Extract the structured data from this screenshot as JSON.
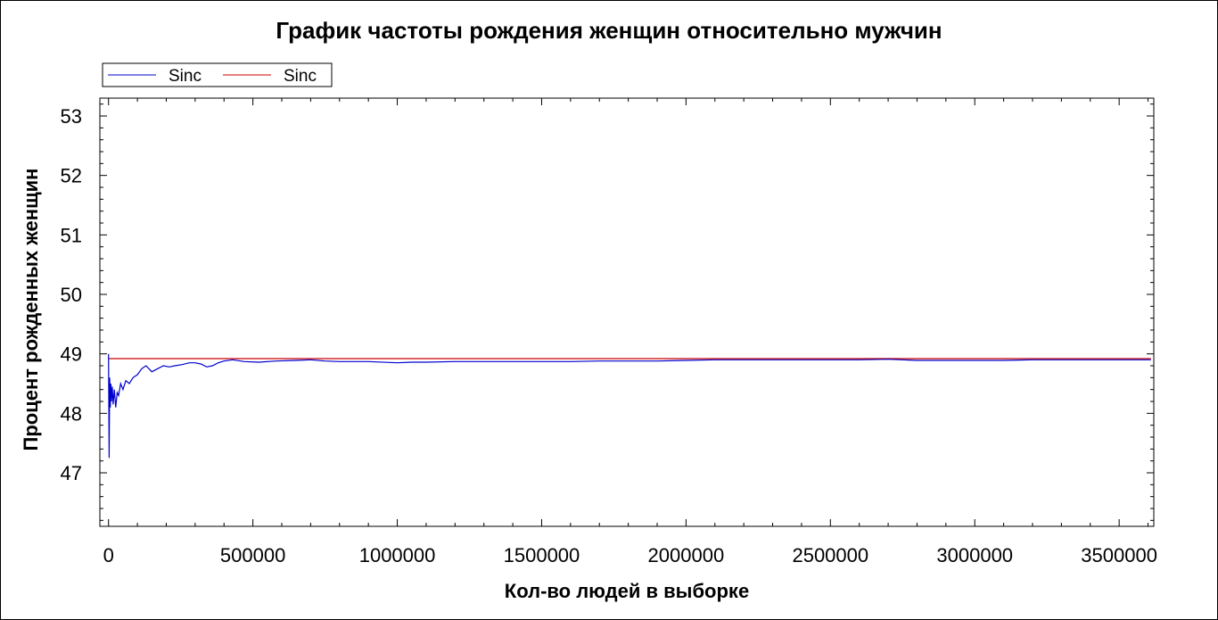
{
  "chart_data": {
    "type": "line",
    "title": "График частоты рождения женщин относительно мужчин",
    "xlabel": "Кол-во людей в выборке",
    "ylabel": "Процент рожденных женщин",
    "xlim": [
      -30000,
      3620000
    ],
    "ylim": [
      46.1,
      53.3
    ],
    "xticks": [
      0,
      500000,
      1000000,
      1500000,
      2000000,
      2500000,
      3000000,
      3500000
    ],
    "xtick_labels": [
      "0",
      "500000",
      "1000000",
      "1500000",
      "2000000",
      "2500000",
      "3000000",
      "3500000"
    ],
    "yticks": [
      47,
      48,
      49,
      50,
      51,
      52,
      53
    ],
    "ytick_labels": [
      "47",
      "48",
      "49",
      "50",
      "51",
      "52",
      "53"
    ],
    "grid": false,
    "legend_position": "top-left",
    "series": [
      {
        "name": "Sinc",
        "color": "#0000cc",
        "x": [
          0,
          2000,
          4000,
          6000,
          8000,
          10000,
          13000,
          16000,
          20000,
          25000,
          30000,
          35000,
          42000,
          50000,
          60000,
          72000,
          85000,
          100000,
          115000,
          130000,
          150000,
          170000,
          190000,
          210000,
          230000,
          255000,
          280000,
          300000,
          320000,
          340000,
          360000,
          380000,
          400000,
          430000,
          470000,
          520000,
          580000,
          650000,
          700000,
          750000,
          800000,
          900000,
          1000000,
          1050000,
          1100000,
          1200000,
          1300000,
          1400000,
          1500000,
          1600000,
          1700000,
          1800000,
          1900000,
          2000000,
          2100000,
          2200000,
          2300000,
          2400000,
          2500000,
          2600000,
          2700000,
          2800000,
          2900000,
          3000000,
          3100000,
          3200000,
          3300000,
          3400000,
          3500000,
          3610000
        ],
        "y": [
          49.0,
          47.25,
          48.6,
          48.1,
          48.5,
          48.2,
          48.45,
          48.15,
          48.4,
          48.1,
          48.35,
          48.3,
          48.5,
          48.4,
          48.55,
          48.5,
          48.6,
          48.65,
          48.75,
          48.8,
          48.7,
          48.75,
          48.8,
          48.78,
          48.8,
          48.82,
          48.85,
          48.85,
          48.83,
          48.78,
          48.8,
          48.85,
          48.88,
          48.9,
          48.87,
          48.86,
          48.88,
          48.89,
          48.9,
          48.88,
          48.87,
          48.87,
          48.85,
          48.86,
          48.86,
          48.87,
          48.87,
          48.87,
          48.87,
          48.87,
          48.88,
          48.88,
          48.88,
          48.89,
          48.9,
          48.9,
          48.9,
          48.9,
          48.9,
          48.9,
          48.91,
          48.89,
          48.89,
          48.89,
          48.89,
          48.9,
          48.9,
          48.9,
          48.9,
          48.9
        ]
      },
      {
        "name": "Sinc",
        "color": "#cc0000",
        "x": [
          0,
          3610000
        ],
        "y": [
          48.92,
          48.92
        ]
      }
    ]
  }
}
